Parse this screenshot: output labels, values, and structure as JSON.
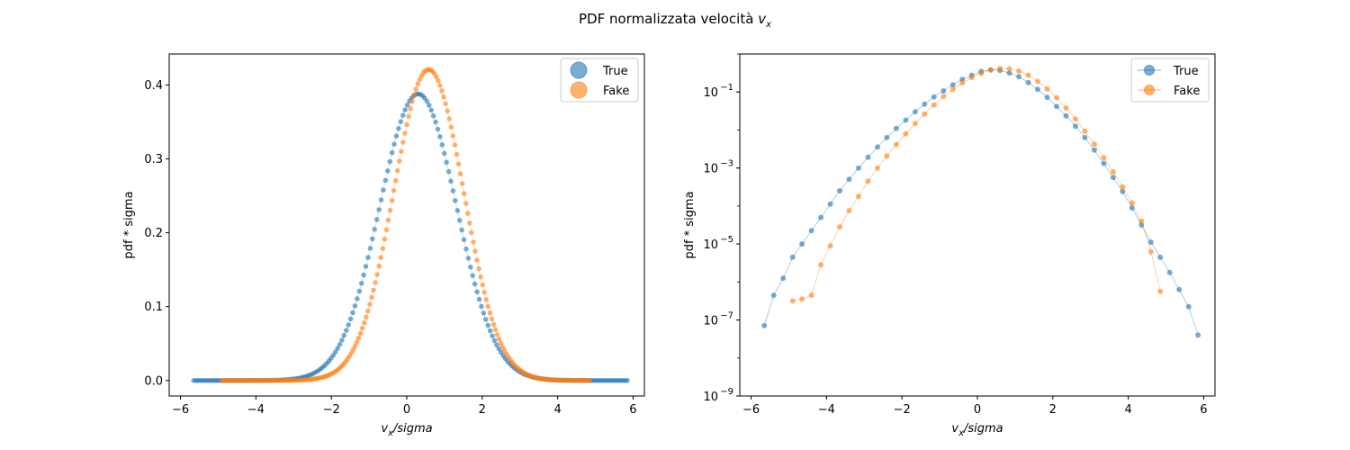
{
  "figure": {
    "title_text": "PDF normalizzata velocità ",
    "title_var": "v",
    "title_sub": "x"
  },
  "colors": {
    "true": "#1f77b4",
    "fake": "#ff7f0e"
  },
  "chart_data": [
    {
      "type": "scatter",
      "yscale": "linear",
      "xlabel": {
        "var": "v",
        "sub": "x",
        "rest": "/sigma"
      },
      "ylabel": "pdf * sigma",
      "xlim": [
        -6.3,
        6.3
      ],
      "ylim": [
        -0.021,
        0.442
      ],
      "xticks": [
        -6,
        -4,
        -2,
        0,
        2,
        4,
        6
      ],
      "xtick_labels": [
        "−6",
        "−4",
        "−2",
        "0",
        "2",
        "4",
        "6"
      ],
      "yticks": [
        0.0,
        0.1,
        0.2,
        0.3,
        0.4
      ],
      "ytick_labels": [
        "0.0",
        "0.1",
        "0.2",
        "0.3",
        "0.4"
      ],
      "grid": false,
      "legend": {
        "placement": "top-right",
        "entries": [
          "True",
          "Fake"
        ],
        "marker": "large-circle"
      },
      "series": [
        {
          "name": "True",
          "color": "#1f77b4",
          "mean": 0.3,
          "sd": 1.02,
          "peak": 0.388,
          "x_min": -5.65,
          "x_max": 5.85,
          "n_points": 200
        },
        {
          "name": "Fake",
          "color": "#ff7f0e",
          "mean": 0.58,
          "sd": 0.93,
          "peak": 0.421,
          "x_min": -4.9,
          "x_max": 4.85,
          "n_points": 200
        }
      ]
    },
    {
      "type": "scatter",
      "yscale": "log",
      "xlabel": {
        "var": "v",
        "sub": "x",
        "rest": "/sigma"
      },
      "ylabel": "pdf * sigma",
      "xlim": [
        -6.3,
        6.3
      ],
      "ylim_log10": [
        -9,
        0
      ],
      "xticks": [
        -6,
        -4,
        -2,
        0,
        2,
        4,
        6
      ],
      "xtick_labels": [
        "−6",
        "−4",
        "−2",
        "0",
        "2",
        "4",
        "6"
      ],
      "yticks_log10": [
        -9,
        -7,
        -5,
        -3,
        -1
      ],
      "ytick_labels": [
        "10",
        "10",
        "10",
        "10",
        "10"
      ],
      "ytick_exponents": [
        "−9",
        "−7",
        "−5",
        "−3",
        "−1"
      ],
      "grid": false,
      "legend": {
        "placement": "top-right",
        "entries": [
          "True",
          "Fake"
        ],
        "marker": "circle-with-line"
      },
      "series": [
        {
          "name": "True",
          "color": "#1f77b4",
          "points": [
            [
              -5.65,
              -7.15
            ],
            [
              -5.4,
              -6.35
            ],
            [
              -5.15,
              -5.9
            ],
            [
              -4.9,
              -5.35
            ],
            [
              -4.65,
              -5.0
            ],
            [
              -4.4,
              -4.65
            ],
            [
              -4.15,
              -4.3
            ],
            [
              -3.9,
              -3.95
            ],
            [
              -3.65,
              -3.6
            ],
            [
              -3.4,
              -3.3
            ],
            [
              -3.15,
              -3.0
            ],
            [
              -2.9,
              -2.72
            ],
            [
              -2.65,
              -2.45
            ],
            [
              -2.4,
              -2.2
            ],
            [
              -2.15,
              -1.96
            ],
            [
              -1.9,
              -1.74
            ],
            [
              -1.65,
              -1.52
            ],
            [
              -1.4,
              -1.32
            ],
            [
              -1.15,
              -1.13
            ],
            [
              -0.9,
              -0.97
            ],
            [
              -0.65,
              -0.81
            ],
            [
              -0.4,
              -0.67
            ],
            [
              -0.15,
              -0.56
            ],
            [
              0.1,
              -0.46
            ],
            [
              0.35,
              -0.42
            ],
            [
              0.6,
              -0.43
            ],
            [
              0.85,
              -0.5
            ],
            [
              1.1,
              -0.6
            ],
            [
              1.35,
              -0.75
            ],
            [
              1.6,
              -0.93
            ],
            [
              1.85,
              -1.14
            ],
            [
              2.1,
              -1.38
            ],
            [
              2.35,
              -1.63
            ],
            [
              2.6,
              -1.9
            ],
            [
              2.85,
              -2.2
            ],
            [
              3.1,
              -2.53
            ],
            [
              3.35,
              -2.88
            ],
            [
              3.6,
              -3.25
            ],
            [
              3.85,
              -3.62
            ],
            [
              4.1,
              -4.05
            ],
            [
              4.35,
              -4.5
            ],
            [
              4.6,
              -4.95
            ],
            [
              4.85,
              -5.35
            ],
            [
              5.1,
              -5.75
            ],
            [
              5.35,
              -6.2
            ],
            [
              5.6,
              -6.65
            ],
            [
              5.85,
              -7.4
            ]
          ]
        },
        {
          "name": "Fake",
          "color": "#ff7f0e",
          "points": [
            [
              -4.9,
              -6.5
            ],
            [
              -4.65,
              -6.45
            ],
            [
              -4.4,
              -6.35
            ],
            [
              -4.15,
              -5.55
            ],
            [
              -3.9,
              -5.05
            ],
            [
              -3.65,
              -4.55
            ],
            [
              -3.4,
              -4.12
            ],
            [
              -3.15,
              -3.75
            ],
            [
              -2.9,
              -3.35
            ],
            [
              -2.65,
              -3.0
            ],
            [
              -2.4,
              -2.68
            ],
            [
              -2.15,
              -2.38
            ],
            [
              -1.9,
              -2.1
            ],
            [
              -1.65,
              -1.83
            ],
            [
              -1.4,
              -1.58
            ],
            [
              -1.15,
              -1.34
            ],
            [
              -0.9,
              -1.12
            ],
            [
              -0.65,
              -0.93
            ],
            [
              -0.4,
              -0.76
            ],
            [
              -0.15,
              -0.62
            ],
            [
              0.1,
              -0.51
            ],
            [
              0.35,
              -0.42
            ],
            [
              0.6,
              -0.38
            ],
            [
              0.85,
              -0.39
            ],
            [
              1.1,
              -0.45
            ],
            [
              1.35,
              -0.56
            ],
            [
              1.6,
              -0.72
            ],
            [
              1.85,
              -0.92
            ],
            [
              2.1,
              -1.15
            ],
            [
              2.35,
              -1.42
            ],
            [
              2.6,
              -1.71
            ],
            [
              2.85,
              -2.03
            ],
            [
              3.1,
              -2.37
            ],
            [
              3.35,
              -2.73
            ],
            [
              3.6,
              -3.1
            ],
            [
              3.85,
              -3.5
            ],
            [
              4.1,
              -3.92
            ],
            [
              4.35,
              -4.4
            ],
            [
              4.6,
              -5.2
            ],
            [
              4.85,
              -6.25
            ]
          ]
        }
      ]
    }
  ]
}
